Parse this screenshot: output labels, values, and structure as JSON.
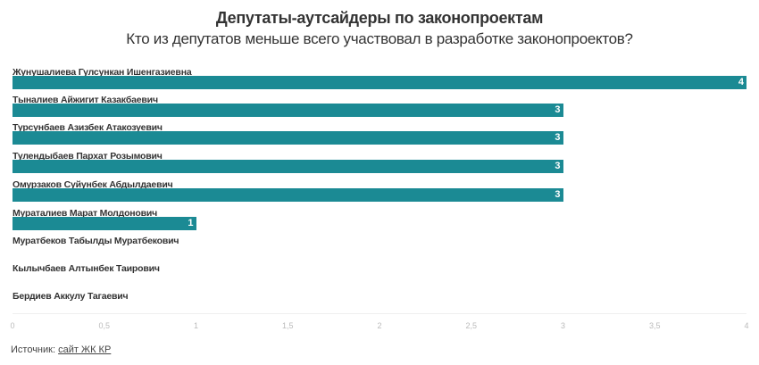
{
  "header": {
    "title": "Депутаты-аутсайдеры по законопроектам",
    "subtitle": "Кто из депутатов меньше всего участвовал в разработке законопроектов?"
  },
  "chart_data": {
    "type": "bar",
    "orientation": "horizontal",
    "title": "Депутаты-аутсайдеры по законопроектам",
    "subtitle": "Кто из депутатов меньше всего участвовал в разработке законопроектов?",
    "categories": [
      "Жунушалиева Гулсункан Ишенгазиевна",
      "Тыналиев Айжигит Казакбаевич",
      "Турсунбаев Азизбек Атакозуевич",
      "Тулендыбаев Пархат Розымович",
      "Омурзаков Суйунбек Абдылдаевич",
      "Мураталиев Марат Молдонович",
      "Муратбеков Табылды Муратбекович",
      "Кылычбаев Алтынбек Таирович",
      "Бердиев Аккулу Тагаевич"
    ],
    "values": [
      4,
      3,
      3,
      3,
      3,
      1,
      0,
      0,
      0
    ],
    "xlim": [
      0,
      4
    ],
    "xticks": [
      "0",
      "0,5",
      "1",
      "1,5",
      "2",
      "2,5",
      "3",
      "3,5",
      "4"
    ],
    "color": "#1b8a94",
    "xlabel": "",
    "ylabel": ""
  },
  "rows": [
    {
      "label": "Жунушалиева Гулсункан Ишенгазиевна",
      "value": 4,
      "value_label": "4"
    },
    {
      "label": "Тыналиев Айжигит Казакбаевич",
      "value": 3,
      "value_label": "3"
    },
    {
      "label": "Турсунбаев Азизбек Атакозуевич",
      "value": 3,
      "value_label": "3"
    },
    {
      "label": "Тулендыбаев Пархат Розымович",
      "value": 3,
      "value_label": "3"
    },
    {
      "label": "Омурзаков Суйунбек Абдылдаевич",
      "value": 3,
      "value_label": "3"
    },
    {
      "label": "Мураталиев Марат Молдонович",
      "value": 1,
      "value_label": "1"
    },
    {
      "label": "Муратбеков Табылды Муратбекович",
      "value": 0,
      "value_label": ""
    },
    {
      "label": "Кылычбаев Алтынбек Таирович",
      "value": 0,
      "value_label": ""
    },
    {
      "label": "Бердиев Аккулу Тагаевич",
      "value": 0,
      "value_label": ""
    }
  ],
  "axis": {
    "ticks": [
      "0",
      "0,5",
      "1",
      "1,5",
      "2",
      "2,5",
      "3",
      "3,5",
      "4"
    ]
  },
  "footer": {
    "source_label": "Источник:",
    "source_link": "сайт ЖК КР"
  }
}
